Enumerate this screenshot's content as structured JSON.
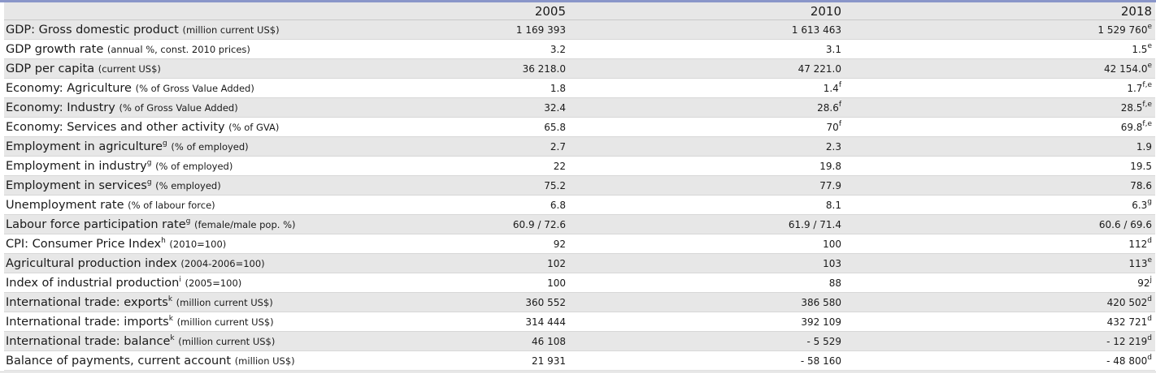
{
  "header": {
    "label": "",
    "years": [
      "2005",
      "2010",
      "2018"
    ]
  },
  "rows": [
    {
      "label": "GDP: Gross domestic product",
      "label_sup": "",
      "unit": "(million current US$)",
      "values": [
        {
          "v": "1 169 393",
          "s": ""
        },
        {
          "v": "1 613 463",
          "s": ""
        },
        {
          "v": "1 529 760",
          "s": "e"
        }
      ]
    },
    {
      "label": "GDP growth rate",
      "label_sup": "",
      "unit": "(annual %, const. 2010 prices)",
      "values": [
        {
          "v": "3.2",
          "s": ""
        },
        {
          "v": "3.1",
          "s": ""
        },
        {
          "v": "1.5",
          "s": "e"
        }
      ]
    },
    {
      "label": "GDP per capita",
      "label_sup": "",
      "unit": "(current US$)",
      "values": [
        {
          "v": "36 218.0",
          "s": ""
        },
        {
          "v": "47 221.0",
          "s": ""
        },
        {
          "v": "42 154.0",
          "s": "e"
        }
      ]
    },
    {
      "label": "Economy: Agriculture",
      "label_sup": "",
      "unit": "(% of Gross Value Added)",
      "values": [
        {
          "v": "1.8",
          "s": ""
        },
        {
          "v": "1.4",
          "s": "f"
        },
        {
          "v": "1.7",
          "s": "f,e"
        }
      ]
    },
    {
      "label": "Economy: Industry",
      "label_sup": "",
      "unit": "(% of Gross Value Added)",
      "values": [
        {
          "v": "32.4",
          "s": ""
        },
        {
          "v": "28.6",
          "s": "f"
        },
        {
          "v": "28.5",
          "s": "f,e"
        }
      ]
    },
    {
      "label": "Economy: Services and other activity",
      "label_sup": "",
      "unit": "(% of GVA)",
      "values": [
        {
          "v": "65.8",
          "s": ""
        },
        {
          "v": "70",
          "s": "f"
        },
        {
          "v": "69.8",
          "s": "f,e"
        }
      ]
    },
    {
      "label": "Employment in agriculture",
      "label_sup": "g",
      "unit": "(% of employed)",
      "values": [
        {
          "v": "2.7",
          "s": ""
        },
        {
          "v": "2.3",
          "s": ""
        },
        {
          "v": "1.9",
          "s": ""
        }
      ]
    },
    {
      "label": "Employment in industry",
      "label_sup": "g",
      "unit": "(% of employed)",
      "values": [
        {
          "v": "22",
          "s": ""
        },
        {
          "v": "19.8",
          "s": ""
        },
        {
          "v": "19.5",
          "s": ""
        }
      ]
    },
    {
      "label": "Employment in services",
      "label_sup": "g",
      "unit": "(% employed)",
      "values": [
        {
          "v": "75.2",
          "s": ""
        },
        {
          "v": "77.9",
          "s": ""
        },
        {
          "v": "78.6",
          "s": ""
        }
      ]
    },
    {
      "label": "Unemployment rate",
      "label_sup": "",
      "unit": "(% of labour force)",
      "values": [
        {
          "v": "6.8",
          "s": ""
        },
        {
          "v": "8.1",
          "s": ""
        },
        {
          "v": "6.3",
          "s": "g"
        }
      ]
    },
    {
      "label": "Labour force participation rate",
      "label_sup": "g",
      "unit": "(female/male pop. %)",
      "values": [
        {
          "v": "60.9 / 72.6",
          "s": ""
        },
        {
          "v": "61.9 / 71.4",
          "s": ""
        },
        {
          "v": "60.6 / 69.6",
          "s": ""
        }
      ]
    },
    {
      "label": "CPI: Consumer Price Index",
      "label_sup": "h",
      "unit": "(2010=100)",
      "values": [
        {
          "v": "92",
          "s": ""
        },
        {
          "v": "100",
          "s": ""
        },
        {
          "v": "112",
          "s": "d"
        }
      ]
    },
    {
      "label": "Agricultural production index",
      "label_sup": "",
      "unit": "(2004-2006=100)",
      "values": [
        {
          "v": "102",
          "s": ""
        },
        {
          "v": "103",
          "s": ""
        },
        {
          "v": "113",
          "s": "e"
        }
      ]
    },
    {
      "label": "Index of industrial production",
      "label_sup": "i",
      "unit": "(2005=100)",
      "values": [
        {
          "v": "100",
          "s": ""
        },
        {
          "v": "88",
          "s": ""
        },
        {
          "v": "92",
          "s": "j"
        }
      ]
    },
    {
      "label": "International trade: exports",
      "label_sup": "k",
      "unit": "(million current US$)",
      "values": [
        {
          "v": "360 552",
          "s": ""
        },
        {
          "v": "386 580",
          "s": ""
        },
        {
          "v": "420 502",
          "s": "d"
        }
      ]
    },
    {
      "label": "International trade: imports",
      "label_sup": "k",
      "unit": "(million current US$)",
      "values": [
        {
          "v": "314 444",
          "s": ""
        },
        {
          "v": "392 109",
          "s": ""
        },
        {
          "v": "432 721",
          "s": "d"
        }
      ]
    },
    {
      "label": "International trade: balance",
      "label_sup": "k",
      "unit": "(million current US$)",
      "values": [
        {
          "v": "46 108",
          "s": ""
        },
        {
          "v": "- 5 529",
          "s": ""
        },
        {
          "v": "- 12 219",
          "s": "d"
        }
      ]
    },
    {
      "label": "Balance of payments, current account",
      "label_sup": "",
      "unit": "(million US$)",
      "values": [
        {
          "v": "21 931",
          "s": ""
        },
        {
          "v": "- 58 160",
          "s": ""
        },
        {
          "v": "- 48 800",
          "s": "d"
        }
      ]
    }
  ]
}
